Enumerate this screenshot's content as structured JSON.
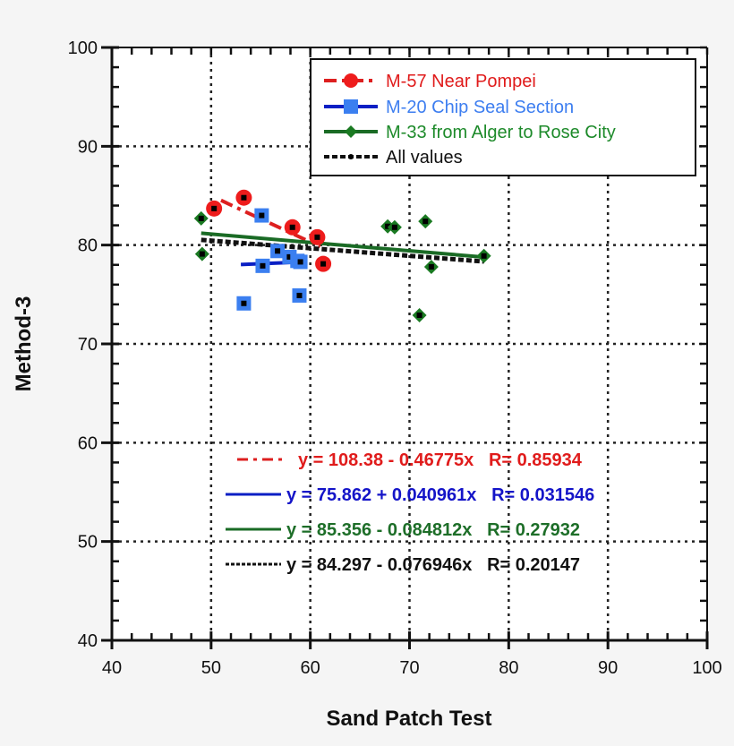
{
  "chart_data": {
    "type": "scatter",
    "title": "",
    "xlabel": "Sand Patch Test",
    "ylabel": "Method-3",
    "xlim": [
      40,
      100
    ],
    "ylim": [
      40,
      100
    ],
    "xticks": [
      40,
      50,
      60,
      70,
      80,
      90,
      100
    ],
    "yticks": [
      40,
      50,
      60,
      70,
      80,
      90,
      100
    ],
    "grid": true,
    "legend_position": "upper right",
    "series": [
      {
        "name": "M-57 Near Pompei",
        "color": "#ee1c1c",
        "line_color": "#dd1f1f",
        "marker": "circle",
        "line_style": "dash-dot",
        "points": [
          [
            50.3,
            83.7
          ],
          [
            53.3,
            84.8
          ],
          [
            58.2,
            81.8
          ],
          [
            60.7,
            80.8
          ],
          [
            61.3,
            78.1
          ]
        ],
        "fit": {
          "intercept": 108.38,
          "slope": -0.46775,
          "R": 0.85934,
          "x_range": [
            51,
            61
          ]
        },
        "equation": "y = 108.38 - 0.46775x   R= 0.85934"
      },
      {
        "name": "M-20 Chip Seal Section",
        "color": "#3b7ff0",
        "line_color": "#0a1fc4",
        "marker": "square",
        "line_style": "solid",
        "points": [
          [
            55.1,
            83.0
          ],
          [
            53.3,
            74.1
          ],
          [
            55.2,
            77.9
          ],
          [
            56.7,
            79.4
          ],
          [
            57.9,
            78.8
          ],
          [
            58.7,
            78.4
          ],
          [
            59.0,
            78.3
          ],
          [
            58.9,
            74.9
          ]
        ],
        "fit": {
          "intercept": 75.862,
          "slope": 0.040961,
          "R": 0.031546,
          "x_range": [
            53,
            59
          ]
        },
        "equation": "y = 75.862 + 0.040961x   R= 0.031546"
      },
      {
        "name": "M-33 from Alger to Rose City",
        "color": "#1a7a22",
        "line_color": "#1a6b25",
        "marker": "diamond",
        "line_style": "solid",
        "points": [
          [
            49.0,
            82.7
          ],
          [
            49.1,
            79.1
          ],
          [
            67.8,
            81.9
          ],
          [
            68.5,
            81.8
          ],
          [
            71.6,
            82.4
          ],
          [
            72.2,
            77.8
          ],
          [
            71.0,
            72.9
          ],
          [
            77.5,
            78.9
          ]
        ],
        "fit": {
          "intercept": 85.356,
          "slope": -0.084812,
          "R": 0.27932,
          "x_range": [
            49,
            77.5
          ]
        },
        "equation": "y = 85.356 - 0.084812x   R= 0.27932"
      },
      {
        "name": "All values",
        "color": "#111111",
        "line_color": "#111111",
        "marker": "dot",
        "line_style": "dotted",
        "points": [],
        "fit": {
          "intercept": 84.297,
          "slope": -0.076946,
          "R": 0.20147,
          "x_range": [
            49,
            77.5
          ]
        },
        "equation": "y = 84.297 - 0.076946x   R= 0.20147"
      }
    ]
  },
  "legend": {
    "items": [
      "M-57 Near Pompei",
      "M-20 Chip Seal Section",
      "M-33 from Alger to Rose City",
      "All values"
    ],
    "colors": [
      "#e01b1b",
      "#3d7ef0",
      "#1d8a2a",
      "#111111"
    ]
  },
  "equations": {
    "items": [
      {
        "text": "y = 108.38 - 0.46775x   R= 0.85934",
        "color": "#e01b1b"
      },
      {
        "text": "y = 75.862 + 0.040961x   R= 0.031546",
        "color": "#1414c8"
      },
      {
        "text": "y = 85.356 - 0.084812x   R= 0.27932",
        "color": "#1d6e28"
      },
      {
        "text": "y = 84.297 - 0.076946x   R= 0.20147",
        "color": "#111111"
      }
    ]
  }
}
